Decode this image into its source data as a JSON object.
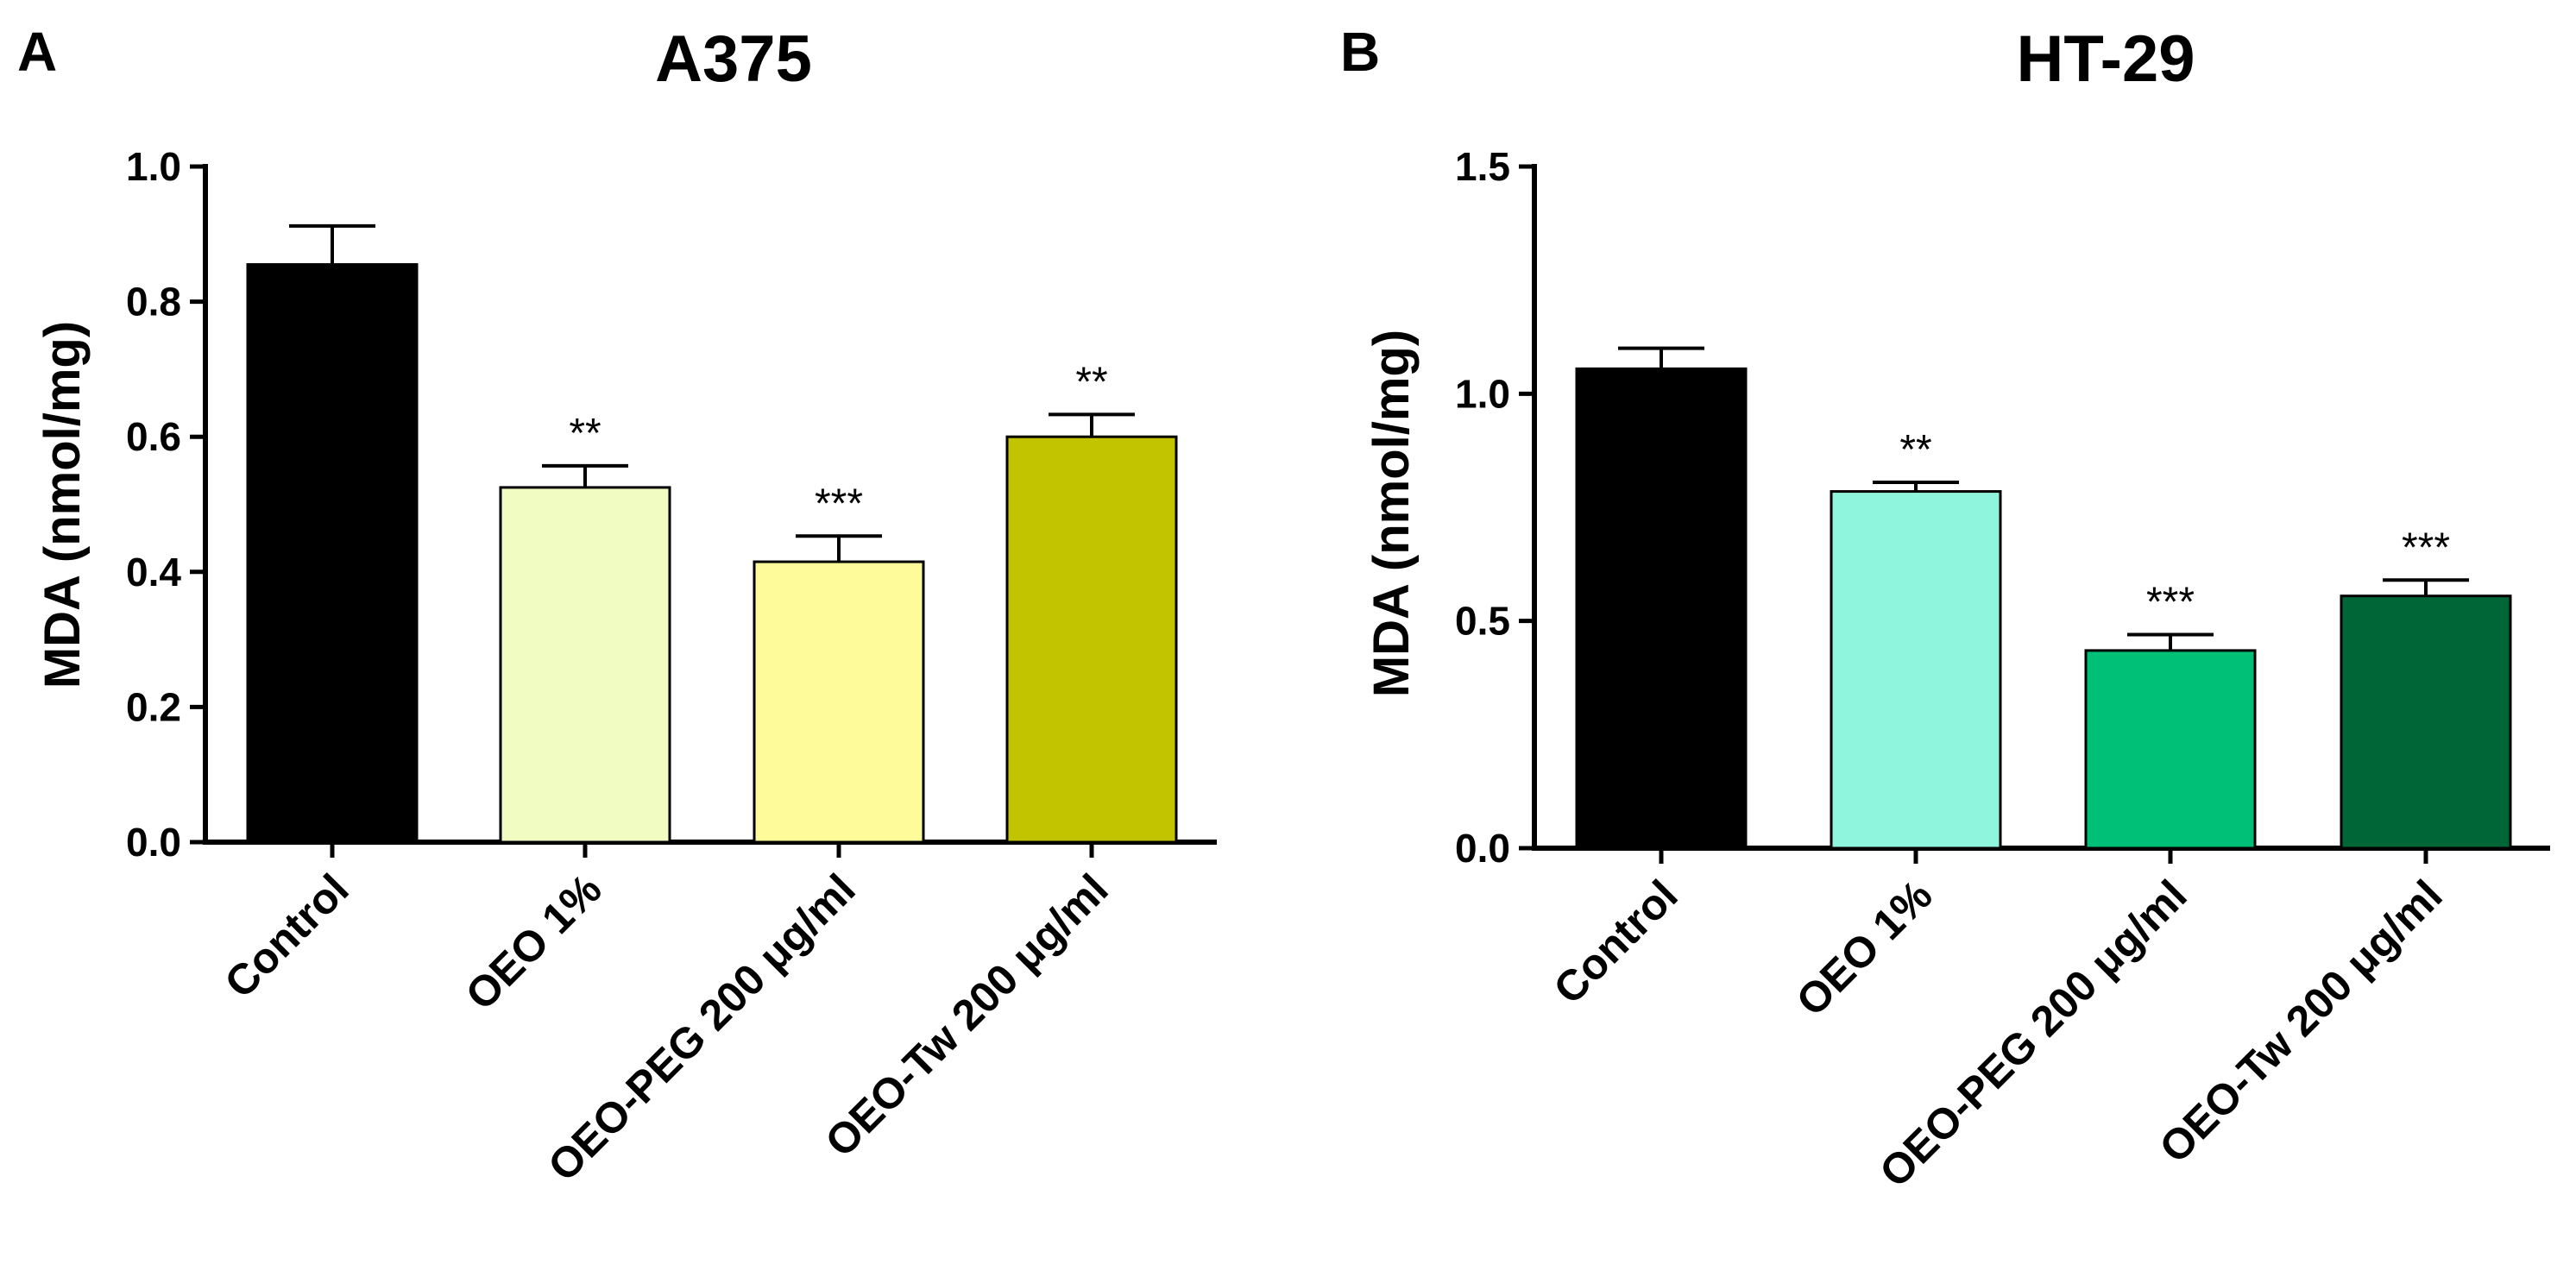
{
  "chart_data": [
    {
      "type": "bar",
      "panel": "A",
      "title": "A375",
      "ylabel": "MDA (nmol/mg)",
      "xlabel": "",
      "ylim": [
        0,
        1.0
      ],
      "yticks": [
        "0.0",
        "0.2",
        "0.4",
        "0.6",
        "0.8",
        "1.0"
      ],
      "ytick_values": [
        0,
        0.2,
        0.4,
        0.6,
        0.8,
        1.0
      ],
      "categories": [
        "Control",
        "OEO 1%",
        "OEO-PEG 200 μg/ml",
        "OEO-Tw 200 μg/ml"
      ],
      "values": [
        0.855,
        0.525,
        0.415,
        0.6
      ],
      "errors": [
        0.057,
        0.032,
        0.038,
        0.033
      ],
      "significance": [
        "",
        "**",
        "***",
        "**"
      ],
      "colors": [
        "#000000",
        "#f0fcc2",
        "#fefc9a",
        "#c2c400"
      ]
    },
    {
      "type": "bar",
      "panel": "B",
      "title": "HT-29",
      "ylabel": "MDA (nmol/mg)",
      "xlabel": "",
      "ylim": [
        0,
        1.5
      ],
      "yticks": [
        "0.0",
        "0.5",
        "1.0",
        "1.5"
      ],
      "ytick_values": [
        0,
        0.5,
        1.0,
        1.5
      ],
      "categories": [
        "Control",
        "OEO 1%",
        "OEO-PEG 200 μg/ml",
        "OEO-Tw 200 μg/ml"
      ],
      "values": [
        1.055,
        0.785,
        0.435,
        0.555
      ],
      "errors": [
        0.045,
        0.02,
        0.035,
        0.035
      ],
      "significance": [
        "",
        "**",
        "***",
        "***"
      ],
      "colors": [
        "#000000",
        "#8ff5dc",
        "#00c077",
        "#006638"
      ]
    }
  ]
}
